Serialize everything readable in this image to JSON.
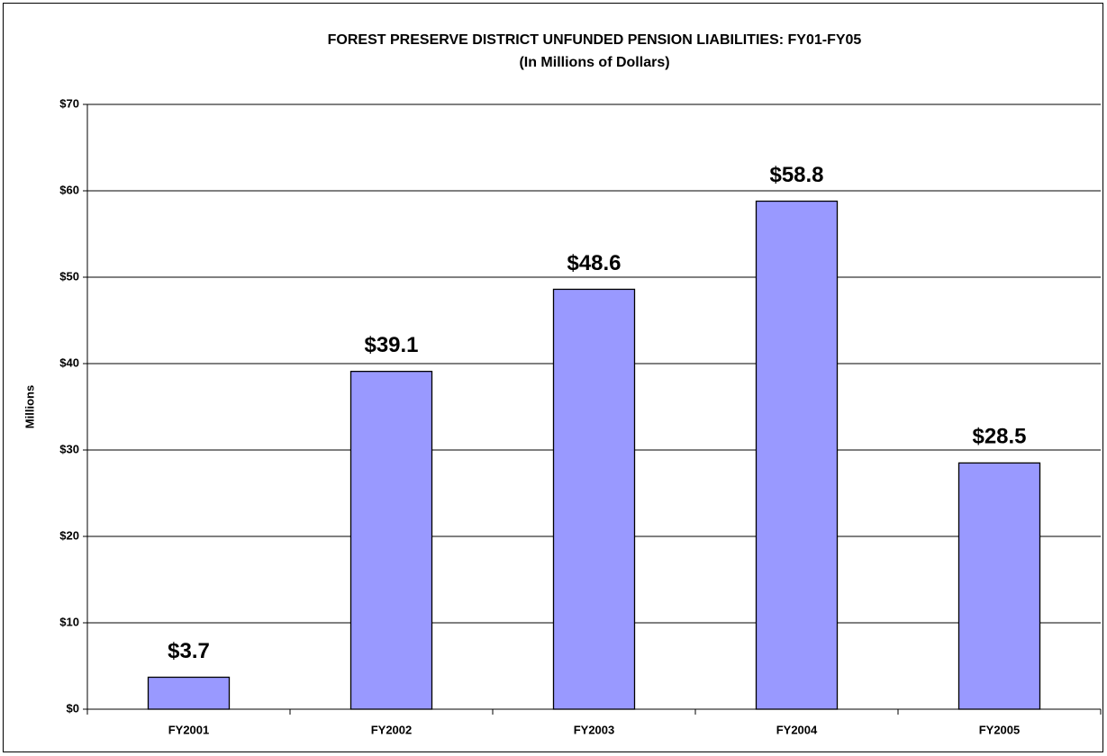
{
  "chart_data": {
    "type": "bar",
    "title": "FOREST PRESERVE DISTRICT UNFUNDED PENSION LIABILITIES: FY01-FY05",
    "subtitle": "(In Millions of Dollars)",
    "y_label": "Millions",
    "categories": [
      "FY2001",
      "FY2002",
      "FY2003",
      "FY2004",
      "FY2005"
    ],
    "values": [
      3.7,
      39.1,
      48.6,
      58.8,
      28.5
    ],
    "value_labels": [
      "$3.7",
      "$39.1",
      "$48.6",
      "$58.8",
      "$28.5"
    ],
    "color": "#9999ff",
    "ylim": [
      0,
      70
    ],
    "yticks": [
      {
        "value": 0,
        "label": "$0"
      },
      {
        "value": 10,
        "label": "$10"
      },
      {
        "value": 20,
        "label": "$20"
      },
      {
        "value": 30,
        "label": "$30"
      },
      {
        "value": 40,
        "label": "$40"
      },
      {
        "value": 50,
        "label": "$50"
      },
      {
        "value": 60,
        "label": "$60"
      },
      {
        "value": 70,
        "label": "$70"
      }
    ],
    "grid": true
  }
}
